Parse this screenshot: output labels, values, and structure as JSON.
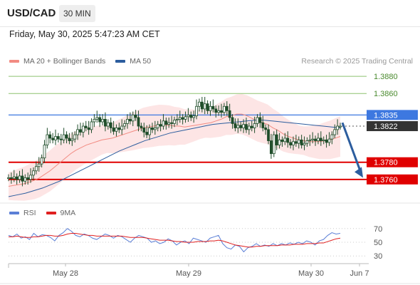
{
  "header": {
    "pair": "USD/CAD",
    "timeframe": "30 MIN"
  },
  "datetime": "Friday, May 30, 2025 5:47:23 AM CET",
  "legend": {
    "ma20": {
      "label": "MA 20 + Bollinger Bands",
      "color": "#f28b82"
    },
    "ma50": {
      "label": "MA 50",
      "color": "#2c5d9e"
    }
  },
  "copyright": "Research © 2025 Trading Central",
  "rsi_legend": {
    "rsi": {
      "label": "RSI",
      "color": "#5b7fd6"
    },
    "ma9": {
      "label": "9MA",
      "color": "#e02020"
    }
  },
  "chart_data": {
    "type": "candlestick",
    "x_ticks": [
      "May 28",
      "May 29",
      "May 30",
      "Jun 7"
    ],
    "y_range": [
      1.3735,
      1.389
    ],
    "levels": [
      {
        "label": "1.3880",
        "value": 1.388,
        "kind": "target",
        "color": "#8dc26f"
      },
      {
        "label": "1.3860",
        "value": 1.386,
        "kind": "target",
        "color": "#8dc26f"
      },
      {
        "label": "1.3835",
        "value": 1.3835,
        "kind": "pivot",
        "color": "#3d78e0"
      },
      {
        "label": "1.3822",
        "value": 1.3822,
        "kind": "last",
        "color": "#333333"
      },
      {
        "label": "1.3780",
        "value": 1.378,
        "kind": "support",
        "color": "#e00000"
      },
      {
        "label": "1.3760",
        "value": 1.376,
        "kind": "support",
        "color": "#e00000"
      }
    ],
    "candles_close": [
      1.3762,
      1.3761,
      1.3763,
      1.376,
      1.3764,
      1.3758,
      1.3762,
      1.376,
      1.3765,
      1.377,
      1.3775,
      1.3778,
      1.3785,
      1.38,
      1.3812,
      1.3808,
      1.3806,
      1.381,
      1.3807,
      1.3806,
      1.3812,
      1.3808,
      1.3805,
      1.3807,
      1.3812,
      1.3818,
      1.3815,
      1.3822,
      1.382,
      1.3818,
      1.3827,
      1.383,
      1.3832,
      1.3827,
      1.383,
      1.3822,
      1.3826,
      1.382,
      1.3816,
      1.382,
      1.3818,
      1.3822,
      1.3825,
      1.383,
      1.3828,
      1.3835,
      1.3832,
      1.3822,
      1.382,
      1.3815,
      1.3812,
      1.382,
      1.3818,
      1.382,
      1.3824,
      1.3822,
      1.3828,
      1.3824,
      1.3826,
      1.3825,
      1.3829,
      1.383,
      1.3832,
      1.383,
      1.3833,
      1.3835,
      1.3832,
      1.3834,
      1.3845,
      1.385,
      1.3842,
      1.3848,
      1.384,
      1.3845,
      1.3842,
      1.3838,
      1.384,
      1.3838,
      1.3845,
      1.384,
      1.3832,
      1.3825,
      1.382,
      1.3823,
      1.382,
      1.3824,
      1.3818,
      1.3822,
      1.382,
      1.3825,
      1.3832,
      1.3826,
      1.382,
      1.3818,
      1.3805,
      1.379,
      1.3812,
      1.38,
      1.3806,
      1.3804,
      1.3808,
      1.3803,
      1.38,
      1.3804,
      1.3802,
      1.3806,
      1.38,
      1.3802,
      1.3805,
      1.3806,
      1.3807,
      1.3805,
      1.3808,
      1.3805,
      1.3806,
      1.3803,
      1.3807,
      1.3812,
      1.3818,
      1.3822,
      1.3822
    ],
    "ma20": [
      1.3752,
      1.3753,
      1.3754,
      1.3755,
      1.3757,
      1.3759,
      1.3762,
      1.3766,
      1.377,
      1.3775,
      1.378,
      1.3785,
      1.379,
      1.3794,
      1.3797,
      1.38,
      1.3802,
      1.3804,
      1.3806,
      1.3807,
      1.3808,
      1.381,
      1.3812,
      1.3814,
      1.3816,
      1.3818,
      1.382,
      1.3821,
      1.3822,
      1.3823,
      1.3823,
      1.3823,
      1.3822,
      1.3822,
      1.3821,
      1.3822,
      1.3823,
      1.3824,
      1.3825,
      1.3826,
      1.3828,
      1.383,
      1.3833,
      1.3834,
      1.3836,
      1.3836,
      1.3834,
      1.3831,
      1.3828,
      1.3826,
      1.3824,
      1.382,
      1.3817,
      1.3813,
      1.381,
      1.3808,
      1.3806,
      1.3805,
      1.3804,
      1.3804,
      1.3804,
      1.3805,
      1.3806,
      1.3808,
      1.381
    ],
    "ma50": [
      1.374,
      1.3742,
      1.3744,
      1.3747,
      1.375,
      1.3754,
      1.3758,
      1.3763,
      1.3768,
      1.3773,
      1.3778,
      1.3783,
      1.3788,
      1.3793,
      1.3797,
      1.3801,
      1.3805,
      1.3808,
      1.3811,
      1.3814,
      1.3816,
      1.3818,
      1.382,
      1.3822,
      1.3824,
      1.3825,
      1.3826,
      1.3827,
      1.3828,
      1.3829,
      1.3829,
      1.3828,
      1.3827,
      1.3826,
      1.3825,
      1.3824,
      1.3823,
      1.3822,
      1.3821,
      1.382
    ],
    "rsi": {
      "y_ticks": [
        70,
        50,
        30
      ],
      "rsi_values": [
        60,
        58,
        62,
        56,
        58,
        54,
        63,
        58,
        61,
        60,
        57,
        52,
        60,
        64,
        70,
        66,
        60,
        58,
        62,
        60,
        56,
        54,
        58,
        62,
        60,
        56,
        60,
        58,
        54,
        50,
        56,
        60,
        58,
        56,
        50,
        52,
        48,
        50,
        55,
        52,
        46,
        50,
        52,
        48,
        56,
        54,
        52,
        50,
        56,
        58,
        60,
        48,
        42,
        40,
        46,
        44,
        36,
        42,
        44,
        48,
        44,
        46,
        44,
        48,
        45,
        48,
        46,
        49,
        47,
        50,
        48,
        52,
        50,
        46,
        52,
        54,
        60,
        64,
        62,
        63
      ],
      "ma9_values": [
        58,
        58,
        59,
        58,
        57,
        57,
        58,
        58,
        59,
        60,
        60,
        59,
        59,
        60,
        62,
        63,
        63,
        62,
        61,
        60,
        60,
        59,
        59,
        59,
        59,
        59,
        59,
        59,
        58,
        57,
        57,
        57,
        57,
        56,
        55,
        54,
        53,
        53,
        53,
        52,
        51,
        51,
        50,
        50,
        50,
        51,
        51,
        51,
        52,
        52,
        53,
        52,
        50,
        48,
        46,
        45,
        44,
        43,
        43,
        44,
        44,
        45,
        45,
        45,
        45,
        46,
        46,
        46,
        47,
        47,
        47,
        48,
        48,
        48,
        49,
        49,
        51,
        53,
        55,
        56
      ]
    }
  }
}
